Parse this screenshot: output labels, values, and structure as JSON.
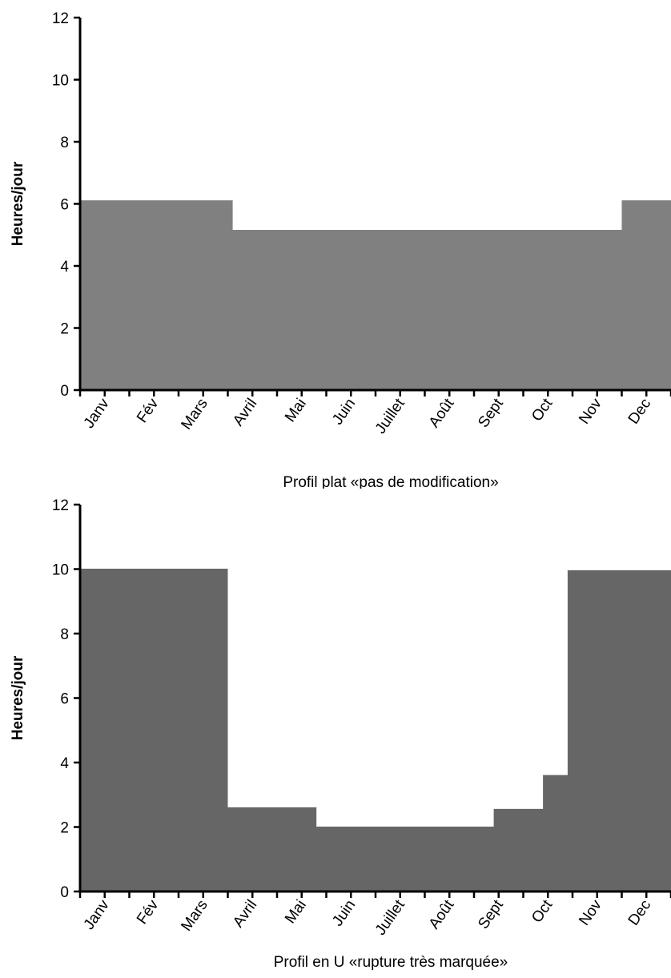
{
  "chart_data": [
    {
      "type": "area",
      "title": "Profil plat «pas de modification»",
      "xlabel": "",
      "ylabel": "Heures/jour",
      "ylim": [
        0,
        12
      ],
      "yticks": [
        "0",
        "2",
        "4",
        "6",
        "8",
        "10",
        "12"
      ],
      "categories": [
        "Janv",
        "Fév",
        "Mars",
        "Avril",
        "Mai",
        "Juin",
        "Juillet",
        "Août",
        "Sept",
        "Oct",
        "Nov",
        "Dec"
      ],
      "steps": [
        {
          "x_from": 0,
          "x_to": 3.1,
          "y": 6.1
        },
        {
          "x_from": 3.1,
          "x_to": 11.0,
          "y": 5.15
        },
        {
          "x_from": 11.0,
          "x_to": 12.0,
          "y": 6.1
        }
      ],
      "fill_color": "#808080",
      "grid": false
    },
    {
      "type": "area",
      "title": "Profil en U «rupture très marquée»",
      "xlabel": "",
      "ylabel": "Heures/jour",
      "ylim": [
        0,
        12
      ],
      "yticks": [
        "0",
        "2",
        "4",
        "6",
        "8",
        "10",
        "12"
      ],
      "categories": [
        "Janv",
        "Fév",
        "Mars",
        "Avril",
        "Mai",
        "Juin",
        "Juillet",
        "Août",
        "Sept",
        "Oct",
        "Nov",
        "Dec"
      ],
      "steps": [
        {
          "x_from": 0,
          "x_to": 3.0,
          "y": 10.0
        },
        {
          "x_from": 3.0,
          "x_to": 4.8,
          "y": 2.6
        },
        {
          "x_from": 4.8,
          "x_to": 8.4,
          "y": 2.0
        },
        {
          "x_from": 8.4,
          "x_to": 9.4,
          "y": 2.55
        },
        {
          "x_from": 9.4,
          "x_to": 9.9,
          "y": 3.6
        },
        {
          "x_from": 9.9,
          "x_to": 12.0,
          "y": 9.95
        }
      ],
      "fill_color": "#666666",
      "grid": false
    }
  ]
}
